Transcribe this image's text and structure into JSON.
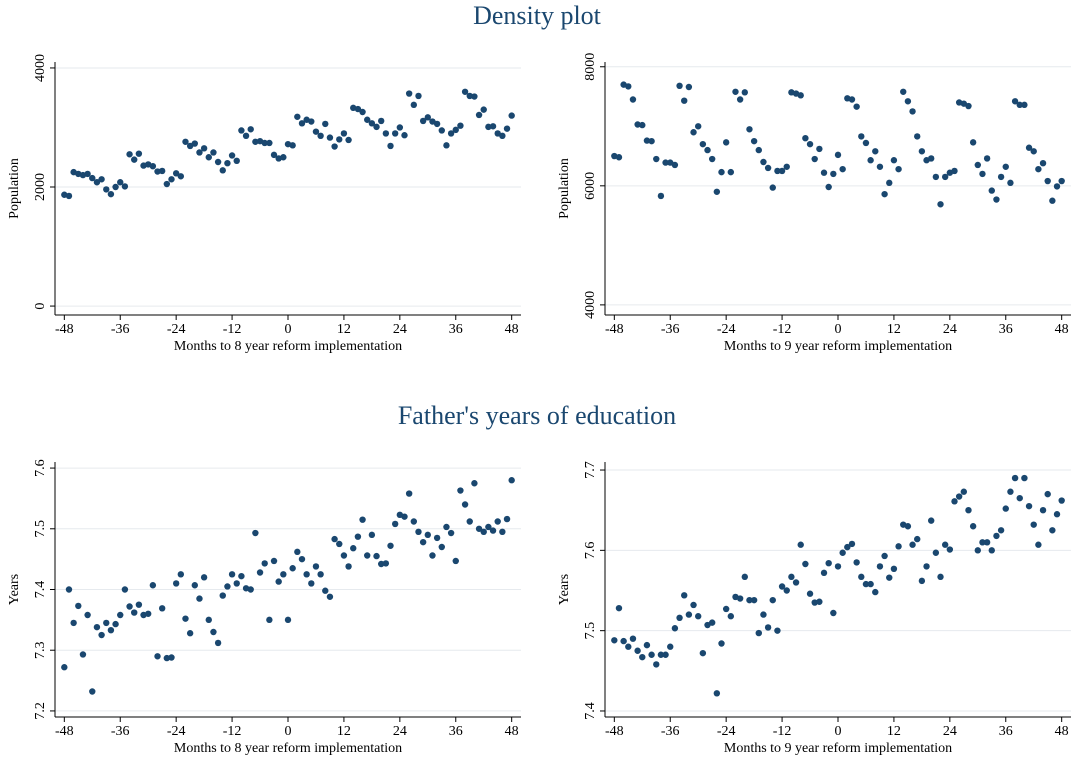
{
  "chart_data": [
    {
      "type": "scatter",
      "title": "Density plot",
      "x_label": "Months to 8 year reform implementation",
      "y_label": "Population",
      "color": "#1a476f",
      "grid": true,
      "xlim": [
        -50,
        50
      ],
      "xticks": [
        -48,
        -36,
        -24,
        -12,
        0,
        12,
        24,
        36,
        48
      ],
      "ylim": [
        -150,
        4100
      ],
      "yticks": [
        0,
        2000,
        4000
      ],
      "x": [
        -48,
        -47,
        -46,
        -45,
        -44,
        -43,
        -42,
        -41,
        -40,
        -39,
        -38,
        -37,
        -36,
        -35,
        -34,
        -33,
        -32,
        -31,
        -30,
        -29,
        -28,
        -27,
        -26,
        -25,
        -24,
        -23,
        -22,
        -21,
        -20,
        -19,
        -18,
        -17,
        -16,
        -15,
        -14,
        -13,
        -12,
        -11,
        -10,
        -9,
        -8,
        -7,
        -6,
        -5,
        -4,
        -3,
        -2,
        -1,
        0,
        1,
        2,
        3,
        4,
        5,
        6,
        7,
        8,
        9,
        10,
        11,
        12,
        13,
        14,
        15,
        16,
        17,
        18,
        19,
        20,
        21,
        22,
        23,
        24,
        25,
        26,
        27,
        28,
        29,
        30,
        31,
        32,
        33,
        34,
        35,
        36,
        37,
        38,
        39,
        40,
        41,
        42,
        43,
        44,
        45,
        46,
        47,
        48
      ],
      "values": [
        1870,
        1850,
        2250,
        2220,
        2200,
        2220,
        2150,
        2080,
        2130,
        1960,
        1880,
        2000,
        2080,
        2010,
        2550,
        2460,
        2560,
        2360,
        2380,
        2350,
        2260,
        2270,
        2050,
        2130,
        2230,
        2180,
        2760,
        2690,
        2730,
        2580,
        2650,
        2500,
        2580,
        2420,
        2280,
        2400,
        2530,
        2440,
        2950,
        2860,
        2970,
        2760,
        2770,
        2740,
        2740,
        2540,
        2480,
        2500,
        2720,
        2700,
        3180,
        3070,
        3130,
        3100,
        2930,
        2860,
        3060,
        2830,
        2680,
        2800,
        2900,
        2790,
        3330,
        3310,
        3260,
        3130,
        3070,
        3010,
        3110,
        2900,
        2690,
        2900,
        3000,
        2870,
        3570,
        3380,
        3530,
        3110,
        3170,
        3100,
        3060,
        2950,
        2700,
        2900,
        2960,
        3030,
        3600,
        3530,
        3520,
        3210,
        3300,
        3010,
        3020,
        2900,
        2860,
        2980,
        3200
      ]
    },
    {
      "type": "scatter",
      "x_label": "Months to 9 year reform implementation",
      "y_label": "Population",
      "color": "#1a476f",
      "grid": true,
      "xlim": [
        -50,
        50
      ],
      "xticks": [
        -48,
        -36,
        -24,
        -12,
        0,
        12,
        24,
        36,
        48
      ],
      "ylim": [
        3830,
        8080
      ],
      "yticks": [
        4000,
        6000,
        8000
      ],
      "x": [
        -48,
        -47,
        -46,
        -45,
        -44,
        -43,
        -42,
        -41,
        -40,
        -39,
        -38,
        -37,
        -36,
        -35,
        -34,
        -33,
        -32,
        -31,
        -30,
        -29,
        -28,
        -27,
        -26,
        -25,
        -24,
        -23,
        -22,
        -21,
        -20,
        -19,
        -18,
        -17,
        -16,
        -15,
        -14,
        -13,
        -12,
        -11,
        -10,
        -9,
        -8,
        -7,
        -6,
        -5,
        -4,
        -3,
        -2,
        -1,
        0,
        1,
        2,
        3,
        4,
        5,
        6,
        7,
        8,
        9,
        10,
        11,
        12,
        13,
        14,
        15,
        16,
        17,
        18,
        19,
        20,
        21,
        22,
        23,
        24,
        25,
        26,
        27,
        28,
        29,
        30,
        31,
        32,
        33,
        34,
        35,
        36,
        37,
        38,
        39,
        40,
        41,
        42,
        43,
        44,
        45,
        46,
        47,
        48
      ],
      "values": [
        6500,
        6480,
        7700,
        7670,
        7450,
        7030,
        7020,
        6760,
        6750,
        6450,
        5830,
        6390,
        6390,
        6350,
        7680,
        7430,
        7660,
        6900,
        7000,
        6700,
        6600,
        6450,
        5900,
        6230,
        6730,
        6230,
        7580,
        7450,
        7570,
        6950,
        6750,
        6600,
        6400,
        6300,
        5970,
        6250,
        6250,
        6320,
        7570,
        7550,
        7520,
        6800,
        6700,
        6450,
        6620,
        6220,
        5980,
        6200,
        6520,
        6280,
        7470,
        7450,
        7330,
        6830,
        6720,
        6430,
        6580,
        6320,
        5860,
        6050,
        6430,
        6280,
        7580,
        7420,
        7250,
        6830,
        6580,
        6430,
        6460,
        6150,
        5690,
        6150,
        6220,
        6250,
        7400,
        7380,
        7340,
        6730,
        6350,
        6200,
        6460,
        5920,
        5770,
        6150,
        6320,
        6050,
        7420,
        7360,
        7360,
        6640,
        6580,
        6280,
        6380,
        6080,
        5750,
        5990,
        6080
      ]
    },
    {
      "type": "scatter",
      "title": "Father's years of education",
      "x_label": "Months to 8 year reform implementation",
      "y_label": "Years",
      "color": "#1a476f",
      "grid": true,
      "xlim": [
        -50,
        50
      ],
      "xticks": [
        -48,
        -36,
        -24,
        -12,
        0,
        12,
        24,
        36,
        48
      ],
      "ylim": [
        7.19,
        7.61
      ],
      "yticks": [
        7.2,
        7.3,
        7.4,
        7.5,
        7.6
      ],
      "x": [
        -48,
        -47,
        -46,
        -45,
        -44,
        -43,
        -42,
        -41,
        -40,
        -39,
        -38,
        -37,
        -36,
        -35,
        -34,
        -33,
        -32,
        -31,
        -30,
        -29,
        -28,
        -27,
        -26,
        -25,
        -24,
        -23,
        -22,
        -21,
        -20,
        -19,
        -18,
        -17,
        -16,
        -15,
        -14,
        -13,
        -12,
        -11,
        -10,
        -9,
        -8,
        -7,
        -6,
        -5,
        -4,
        -3,
        -2,
        -1,
        0,
        1,
        2,
        3,
        4,
        5,
        6,
        7,
        8,
        9,
        10,
        11,
        12,
        13,
        14,
        15,
        16,
        17,
        18,
        19,
        20,
        21,
        22,
        23,
        24,
        25,
        26,
        27,
        28,
        29,
        30,
        31,
        32,
        33,
        34,
        35,
        36,
        37,
        38,
        39,
        40,
        41,
        42,
        43,
        44,
        45,
        46,
        47,
        48
      ],
      "values": [
        7.272,
        7.4,
        7.345,
        7.373,
        7.293,
        7.358,
        7.232,
        7.338,
        7.325,
        7.345,
        7.333,
        7.343,
        7.358,
        7.4,
        7.372,
        7.362,
        7.375,
        7.358,
        7.36,
        7.407,
        7.29,
        7.369,
        7.287,
        7.288,
        7.41,
        7.425,
        7.352,
        7.328,
        7.407,
        7.385,
        7.42,
        7.35,
        7.33,
        7.312,
        7.39,
        7.405,
        7.425,
        7.41,
        7.422,
        7.402,
        7.4,
        7.493,
        7.428,
        7.443,
        7.35,
        7.447,
        7.413,
        7.425,
        7.35,
        7.435,
        7.462,
        7.45,
        7.425,
        7.41,
        7.438,
        7.425,
        7.398,
        7.388,
        7.483,
        7.475,
        7.456,
        7.438,
        7.468,
        7.487,
        7.515,
        7.456,
        7.49,
        7.455,
        7.442,
        7.443,
        7.472,
        7.508,
        7.523,
        7.52,
        7.558,
        7.512,
        7.495,
        7.478,
        7.49,
        7.456,
        7.485,
        7.47,
        7.503,
        7.493,
        7.447,
        7.563,
        7.54,
        7.512,
        7.575,
        7.5,
        7.495,
        7.503,
        7.497,
        7.512,
        7.495,
        7.516,
        7.58
      ]
    },
    {
      "type": "scatter",
      "x_label": "Months to 9 year reform implementation",
      "y_label": "Years",
      "color": "#1a476f",
      "grid": true,
      "xlim": [
        -50,
        50
      ],
      "xticks": [
        -48,
        -36,
        -24,
        -12,
        0,
        12,
        24,
        36,
        48
      ],
      "ylim": [
        7.3925,
        7.71
      ],
      "yticks": [
        7.4,
        7.5,
        7.6,
        7.7
      ],
      "x": [
        -48,
        -47,
        -46,
        -45,
        -44,
        -43,
        -42,
        -41,
        -40,
        -39,
        -38,
        -37,
        -36,
        -35,
        -34,
        -33,
        -32,
        -31,
        -30,
        -29,
        -28,
        -27,
        -26,
        -25,
        -24,
        -23,
        -22,
        -21,
        -20,
        -19,
        -18,
        -17,
        -16,
        -15,
        -14,
        -13,
        -12,
        -11,
        -10,
        -9,
        -8,
        -7,
        -6,
        -5,
        -4,
        -3,
        -2,
        -1,
        0,
        1,
        2,
        3,
        4,
        5,
        6,
        7,
        8,
        9,
        10,
        11,
        12,
        13,
        14,
        15,
        16,
        17,
        18,
        19,
        20,
        21,
        22,
        23,
        24,
        25,
        26,
        27,
        28,
        29,
        30,
        31,
        32,
        33,
        34,
        35,
        36,
        37,
        38,
        39,
        40,
        41,
        42,
        43,
        44,
        45,
        46,
        47,
        48
      ],
      "values": [
        7.488,
        7.528,
        7.487,
        7.48,
        7.49,
        7.475,
        7.467,
        7.482,
        7.47,
        7.458,
        7.47,
        7.47,
        7.48,
        7.503,
        7.516,
        7.544,
        7.52,
        7.532,
        7.518,
        7.472,
        7.507,
        7.51,
        7.422,
        7.484,
        7.527,
        7.518,
        7.542,
        7.54,
        7.567,
        7.538,
        7.538,
        7.497,
        7.52,
        7.504,
        7.538,
        7.5,
        7.555,
        7.55,
        7.567,
        7.56,
        7.607,
        7.583,
        7.546,
        7.535,
        7.536,
        7.572,
        7.584,
        7.522,
        7.58,
        7.597,
        7.604,
        7.608,
        7.585,
        7.567,
        7.558,
        7.558,
        7.548,
        7.58,
        7.593,
        7.566,
        7.577,
        7.605,
        7.632,
        7.63,
        7.607,
        7.614,
        7.562,
        7.58,
        7.637,
        7.597,
        7.567,
        7.607,
        7.601,
        7.661,
        7.667,
        7.673,
        7.65,
        7.63,
        7.6,
        7.61,
        7.61,
        7.6,
        7.618,
        7.625,
        7.652,
        7.673,
        7.69,
        7.665,
        7.69,
        7.655,
        7.632,
        7.607,
        7.65,
        7.67,
        7.625,
        7.645,
        7.662
      ]
    }
  ]
}
